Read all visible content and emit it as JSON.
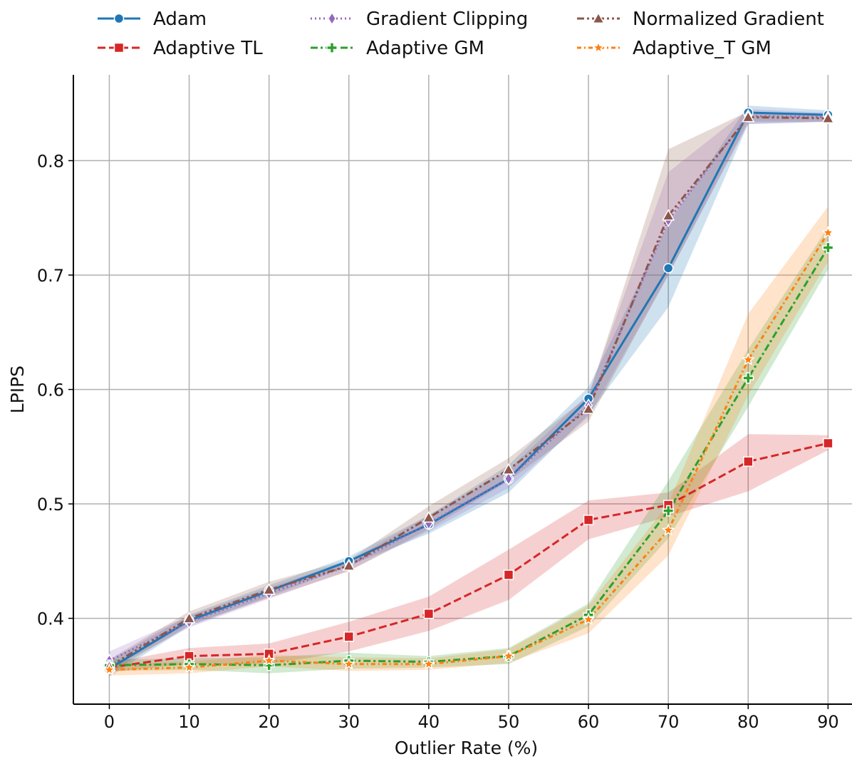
{
  "chart_data": {
    "type": "line",
    "title": "",
    "xlabel": "Outlier Rate (%)",
    "ylabel": "LPIPS",
    "x": [
      0,
      10,
      20,
      30,
      40,
      50,
      60,
      70,
      80,
      90
    ],
    "xlim": [
      -4.5,
      93
    ],
    "ylim": [
      0.325,
      0.875
    ],
    "xticks": [
      "0",
      "10",
      "20",
      "30",
      "40",
      "50",
      "60",
      "70",
      "80",
      "90"
    ],
    "yticks": [
      {
        "value": 0.4,
        "label": "0.4"
      },
      {
        "value": 0.5,
        "label": "0.5"
      },
      {
        "value": 0.6,
        "label": "0.6"
      },
      {
        "value": 0.7,
        "label": "0.7"
      },
      {
        "value": 0.8,
        "label": "0.8"
      }
    ],
    "grid": true,
    "legend_position": "top, 3 columns",
    "series": [
      {
        "name": "Adam",
        "color": "#1f77b4",
        "dash": "solid",
        "marker": "circle",
        "values": [
          0.356,
          0.398,
          0.424,
          0.45,
          0.482,
          0.522,
          0.592,
          0.706,
          0.842,
          0.84
        ],
        "lower": [
          0.349,
          0.393,
          0.419,
          0.446,
          0.474,
          0.51,
          0.578,
          0.672,
          0.832,
          0.834
        ],
        "upper": [
          0.363,
          0.403,
          0.429,
          0.454,
          0.49,
          0.534,
          0.602,
          0.745,
          0.848,
          0.844
        ]
      },
      {
        "name": "Adaptive TL",
        "color": "#d62728",
        "dash": "dashed",
        "marker": "square",
        "values": [
          0.357,
          0.367,
          0.369,
          0.384,
          0.404,
          0.438,
          0.486,
          0.499,
          0.537,
          0.553
        ],
        "lower": [
          0.353,
          0.36,
          0.36,
          0.371,
          0.389,
          0.416,
          0.469,
          0.489,
          0.511,
          0.547
        ],
        "upper": [
          0.361,
          0.374,
          0.378,
          0.397,
          0.419,
          0.46,
          0.503,
          0.51,
          0.561,
          0.56
        ]
      },
      {
        "name": "Gradient Clipping",
        "color": "#9467bd",
        "dash": "dotted",
        "marker": "diamond",
        "values": [
          0.363,
          0.397,
          0.422,
          0.446,
          0.483,
          0.522,
          0.586,
          0.748,
          0.839,
          0.838
        ],
        "lower": [
          0.355,
          0.392,
          0.417,
          0.442,
          0.476,
          0.514,
          0.576,
          0.7,
          0.832,
          0.834
        ],
        "upper": [
          0.371,
          0.402,
          0.427,
          0.45,
          0.49,
          0.53,
          0.596,
          0.79,
          0.845,
          0.842
        ]
      },
      {
        "name": "Adaptive GM",
        "color": "#2ca02c",
        "dash": "dashdot",
        "marker": "plus",
        "values": [
          0.359,
          0.36,
          0.359,
          0.363,
          0.362,
          0.367,
          0.403,
          0.494,
          0.61,
          0.724
        ],
        "lower": [
          0.354,
          0.355,
          0.352,
          0.356,
          0.357,
          0.36,
          0.393,
          0.47,
          0.585,
          0.705
        ],
        "upper": [
          0.364,
          0.365,
          0.366,
          0.37,
          0.367,
          0.374,
          0.413,
          0.52,
          0.635,
          0.742
        ]
      },
      {
        "name": "Normalized Gradient",
        "color": "#8c564b",
        "dash": "dashdotdot",
        "marker": "triangle",
        "values": [
          0.358,
          0.4,
          0.425,
          0.446,
          0.488,
          0.53,
          0.583,
          0.752,
          0.838,
          0.837
        ],
        "lower": [
          0.352,
          0.394,
          0.418,
          0.441,
          0.478,
          0.52,
          0.572,
          0.7,
          0.834,
          0.834
        ],
        "upper": [
          0.364,
          0.406,
          0.432,
          0.451,
          0.498,
          0.54,
          0.594,
          0.81,
          0.843,
          0.84
        ]
      },
      {
        "name": "Adaptive_T GM",
        "color": "#ff7f0e",
        "dash": "dotdash",
        "marker": "star",
        "values": [
          0.355,
          0.357,
          0.363,
          0.36,
          0.36,
          0.367,
          0.399,
          0.477,
          0.626,
          0.737
        ],
        "lower": [
          0.35,
          0.352,
          0.358,
          0.354,
          0.355,
          0.361,
          0.387,
          0.455,
          0.595,
          0.712
        ],
        "upper": [
          0.36,
          0.362,
          0.368,
          0.366,
          0.365,
          0.373,
          0.411,
          0.5,
          0.666,
          0.76
        ]
      }
    ]
  }
}
